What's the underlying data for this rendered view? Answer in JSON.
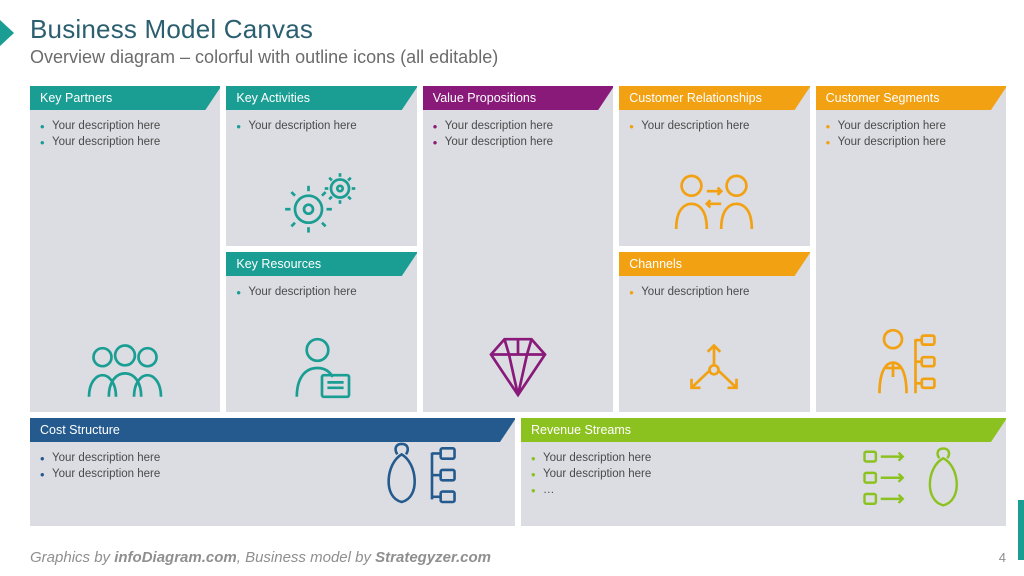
{
  "title": "Business Model Canvas",
  "subtitle": "Overview diagram – colorful with outline icons (all editable)",
  "footer_html": "Graphics by |infoDiagram.com|, Business model by |Strategyzer.com|",
  "page_number": "4",
  "colors": {
    "title": "#2b5f6f",
    "subtitle": "#6b6b6b",
    "block_bg": "#dbdde2",
    "bullet_text": "#4a4a4a"
  },
  "blocks": {
    "kp": {
      "label": "Key Partners",
      "header_bg": "#1a9e94",
      "icon_color": "#1a9e94",
      "bullets": [
        "Your description here",
        "Your description here"
      ]
    },
    "ka": {
      "label": "Key Activities",
      "header_bg": "#1a9e94",
      "icon_color": "#1a9e94",
      "bullets": [
        "Your description here"
      ]
    },
    "kr": {
      "label": "Key Resources",
      "header_bg": "#1a9e94",
      "icon_color": "#1a9e94",
      "bullets": [
        "Your description here"
      ]
    },
    "vp": {
      "label": "Value Propositions",
      "header_bg": "#8a1a7a",
      "icon_color": "#8a1a7a",
      "bullets": [
        "Your description here",
        "Your description here"
      ]
    },
    "cr": {
      "label": "Customer Relationships",
      "header_bg": "#f2a112",
      "icon_color": "#f2a112",
      "bullets": [
        "Your description here"
      ]
    },
    "ch": {
      "label": "Channels",
      "header_bg": "#f2a112",
      "icon_color": "#f2a112",
      "bullets": [
        "Your description here"
      ]
    },
    "cs": {
      "label": "Customer Segments",
      "header_bg": "#f2a112",
      "icon_color": "#f2a112",
      "bullets": [
        "Your description here",
        "Your description here"
      ]
    },
    "cost": {
      "label": "Cost Structure",
      "header_bg": "#245a8d",
      "icon_color": "#245a8d",
      "bullets": [
        "Your description here",
        "Your description here"
      ]
    },
    "rev": {
      "label": "Revenue Streams",
      "header_bg": "#8cc220",
      "icon_color": "#8cc220",
      "bullets": [
        "Your description here",
        "Your description here",
        "…"
      ]
    }
  }
}
